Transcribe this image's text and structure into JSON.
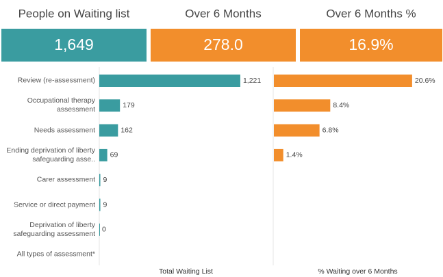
{
  "kpis": [
    {
      "label": "People on Waiting list",
      "value": "1,649",
      "color": "#3a9ca0"
    },
    {
      "label": "Over 6 Months",
      "value": "278.0",
      "color": "#f28e2c"
    },
    {
      "label": "Over 6 Months %",
      "value": "16.9%",
      "color": "#f28e2c"
    }
  ],
  "chart_data": [
    {
      "type": "bar",
      "orientation": "horizontal",
      "x_label": "Total Waiting List",
      "color": "#3a9ca0",
      "categories": [
        "Review (re-assessment)",
        "Occupational therapy assessment",
        "Needs assessment",
        "Ending deprivation of liberty safeguarding asse..",
        "Carer assessment",
        "Service or direct payment",
        "Deprivation of liberty safeguarding assessment",
        "All types of assessment*"
      ],
      "values": [
        1221,
        179,
        162,
        69,
        9,
        9,
        0,
        null
      ],
      "value_labels": [
        "1,221",
        "179",
        "162",
        "69",
        "9",
        "9",
        "0",
        null
      ],
      "xlim": [
        0,
        1500
      ]
    },
    {
      "type": "bar",
      "orientation": "horizontal",
      "x_label": "% Waiting over 6 Months",
      "color": "#f28e2c",
      "values": [
        20.6,
        8.4,
        6.8,
        1.4,
        null,
        null,
        null,
        null
      ],
      "value_labels": [
        "20.6%",
        "8.4%",
        "6.8%",
        "1.4%",
        null,
        null,
        null,
        null
      ],
      "xlim": [
        0,
        25
      ]
    }
  ]
}
